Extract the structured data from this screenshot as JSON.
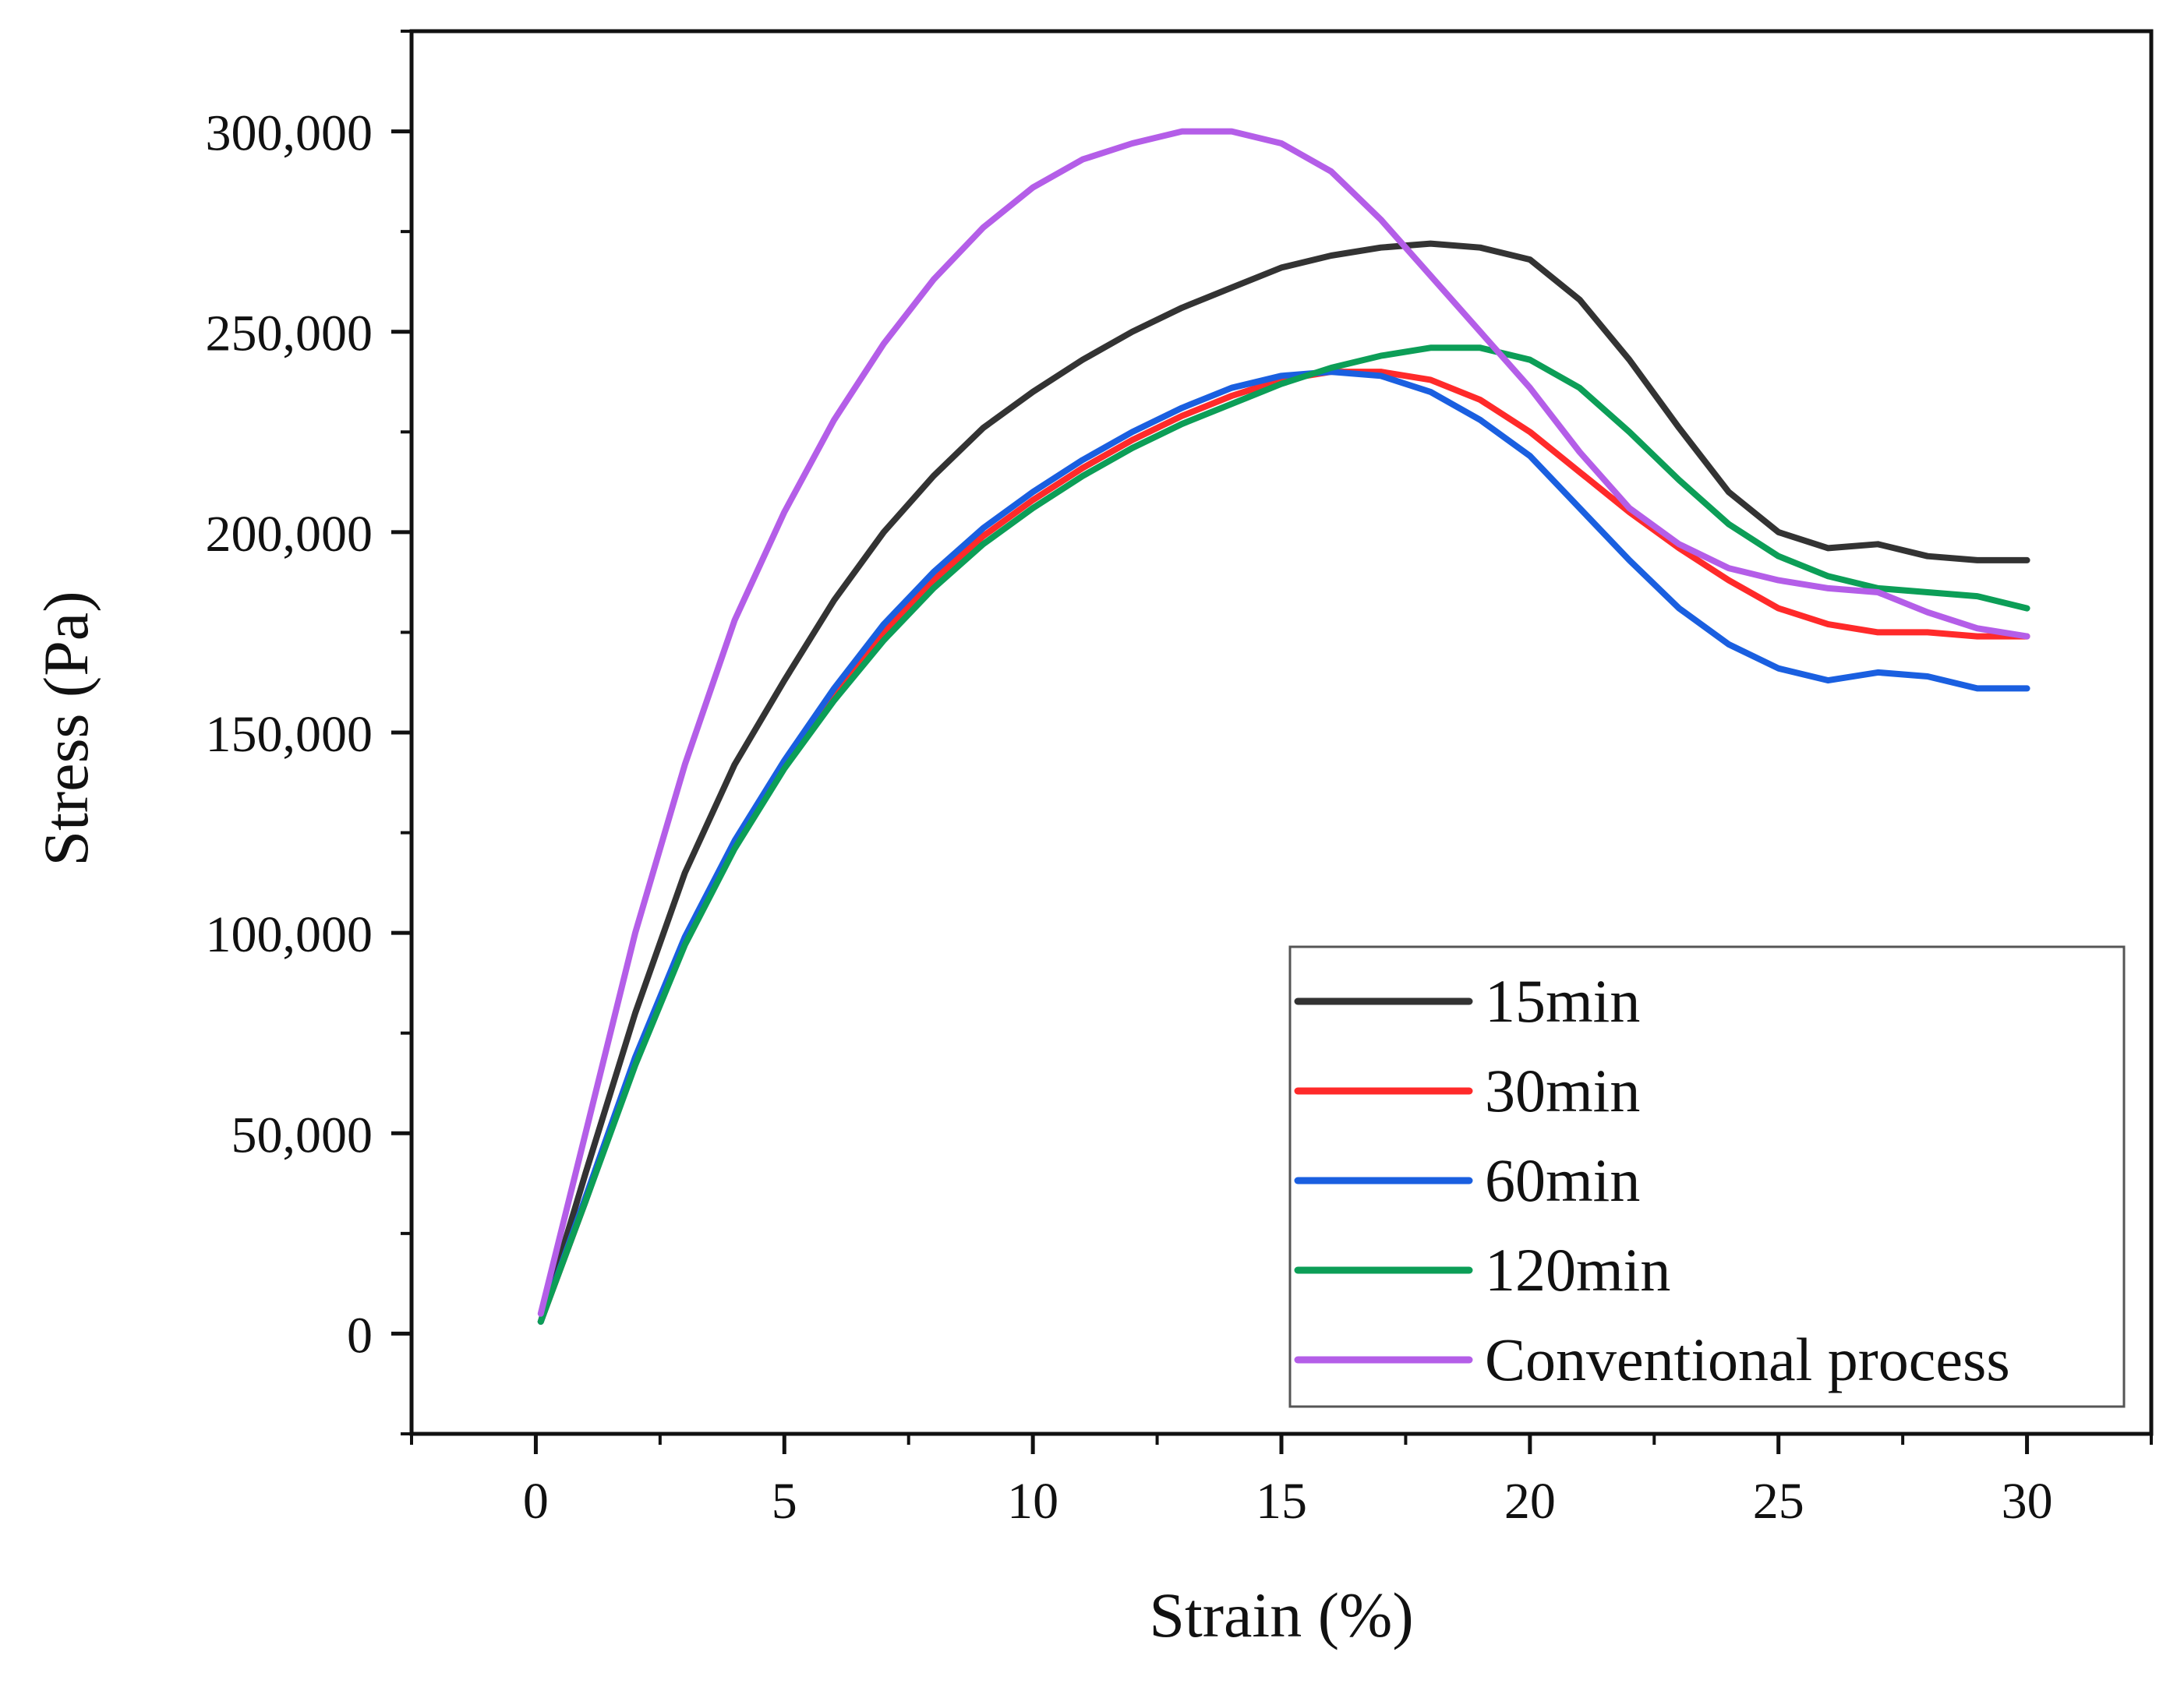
{
  "chart_data": {
    "type": "line",
    "title": "",
    "xlabel": "Strain (%)",
    "ylabel": "Stress (Pa)",
    "xlim": [
      -2.5,
      32.5
    ],
    "ylim": [
      -25000,
      325000
    ],
    "xticks": [
      0,
      5,
      10,
      15,
      20,
      25,
      30
    ],
    "xtick_labels": [
      "0",
      "5",
      "10",
      "15",
      "20",
      "25",
      "30"
    ],
    "yticks": [
      0,
      50000,
      100000,
      150000,
      200000,
      250000,
      300000
    ],
    "ytick_labels": [
      "0",
      "50,000",
      "100,000",
      "150,000",
      "200,000",
      "250,000",
      "300,000"
    ],
    "grid": false,
    "legend_position": "bottom-right",
    "series": [
      {
        "name": "15min",
        "color": "#333333",
        "x": [
          0.1,
          1,
          2,
          3,
          4,
          5,
          6,
          7,
          8,
          9,
          10,
          11,
          12,
          13,
          14,
          15,
          16,
          17,
          18,
          19,
          20,
          21,
          22,
          23,
          24,
          25,
          26,
          27,
          28,
          29,
          30
        ],
        "y": [
          3000,
          40000,
          80000,
          115000,
          142000,
          163000,
          183000,
          200000,
          214000,
          226000,
          235000,
          243000,
          250000,
          256000,
          261000,
          266000,
          269000,
          271000,
          272000,
          271000,
          268000,
          258000,
          243000,
          226000,
          210000,
          200000,
          196000,
          197000,
          194000,
          193000,
          193000
        ]
      },
      {
        "name": "30min",
        "color": "#ff2a2a",
        "x": [
          0.1,
          1,
          2,
          3,
          4,
          5,
          6,
          7,
          8,
          9,
          10,
          11,
          12,
          13,
          14,
          15,
          16,
          17,
          18,
          19,
          20,
          21,
          22,
          23,
          24,
          25,
          26,
          27,
          28,
          29,
          30
        ],
        "y": [
          3000,
          33000,
          68000,
          98000,
          122000,
          142000,
          160000,
          175000,
          188000,
          199000,
          208000,
          216000,
          223000,
          229000,
          234000,
          238000,
          240000,
          240000,
          238000,
          233000,
          225000,
          215000,
          205000,
          196000,
          188000,
          181000,
          177000,
          175000,
          175000,
          174000,
          174000
        ]
      },
      {
        "name": "60min",
        "color": "#1a5fe0",
        "x": [
          0.1,
          1,
          2,
          3,
          4,
          5,
          6,
          7,
          8,
          9,
          10,
          11,
          12,
          13,
          14,
          15,
          16,
          17,
          18,
          19,
          20,
          21,
          22,
          23,
          24,
          25,
          26,
          27,
          28,
          29,
          30
        ],
        "y": [
          3000,
          34000,
          69000,
          99000,
          123000,
          143000,
          161000,
          177000,
          190000,
          201000,
          210000,
          218000,
          225000,
          231000,
          236000,
          239000,
          240000,
          239000,
          235000,
          228000,
          219000,
          206000,
          193000,
          181000,
          172000,
          166000,
          163000,
          165000,
          164000,
          161000,
          161000
        ]
      },
      {
        "name": "120min",
        "color": "#0c9e57",
        "x": [
          0.1,
          1,
          2,
          3,
          4,
          5,
          6,
          7,
          8,
          9,
          10,
          11,
          12,
          13,
          14,
          15,
          16,
          17,
          18,
          19,
          20,
          21,
          22,
          23,
          24,
          25,
          26,
          27,
          28,
          29,
          30
        ],
        "y": [
          3000,
          33000,
          67000,
          97000,
          121000,
          141000,
          158000,
          173000,
          186000,
          197000,
          206000,
          214000,
          221000,
          227000,
          232000,
          237000,
          241000,
          244000,
          246000,
          246000,
          243000,
          236000,
          225000,
          213000,
          202000,
          194000,
          189000,
          186000,
          185000,
          184000,
          181000
        ]
      },
      {
        "name": "Conventional process",
        "color": "#b45ee8",
        "x": [
          0.1,
          1,
          2,
          3,
          4,
          5,
          6,
          7,
          8,
          9,
          10,
          11,
          12,
          13,
          14,
          15,
          16,
          17,
          18,
          19,
          20,
          21,
          22,
          23,
          24,
          25,
          26,
          27,
          28,
          29,
          30
        ],
        "y": [
          5000,
          50000,
          100000,
          142000,
          178000,
          205000,
          228000,
          247000,
          263000,
          276000,
          286000,
          293000,
          297000,
          300000,
          300000,
          297000,
          290000,
          278000,
          264000,
          250000,
          236000,
          220000,
          206000,
          197000,
          191000,
          188000,
          186000,
          185000,
          180000,
          176000,
          174000
        ]
      }
    ]
  }
}
